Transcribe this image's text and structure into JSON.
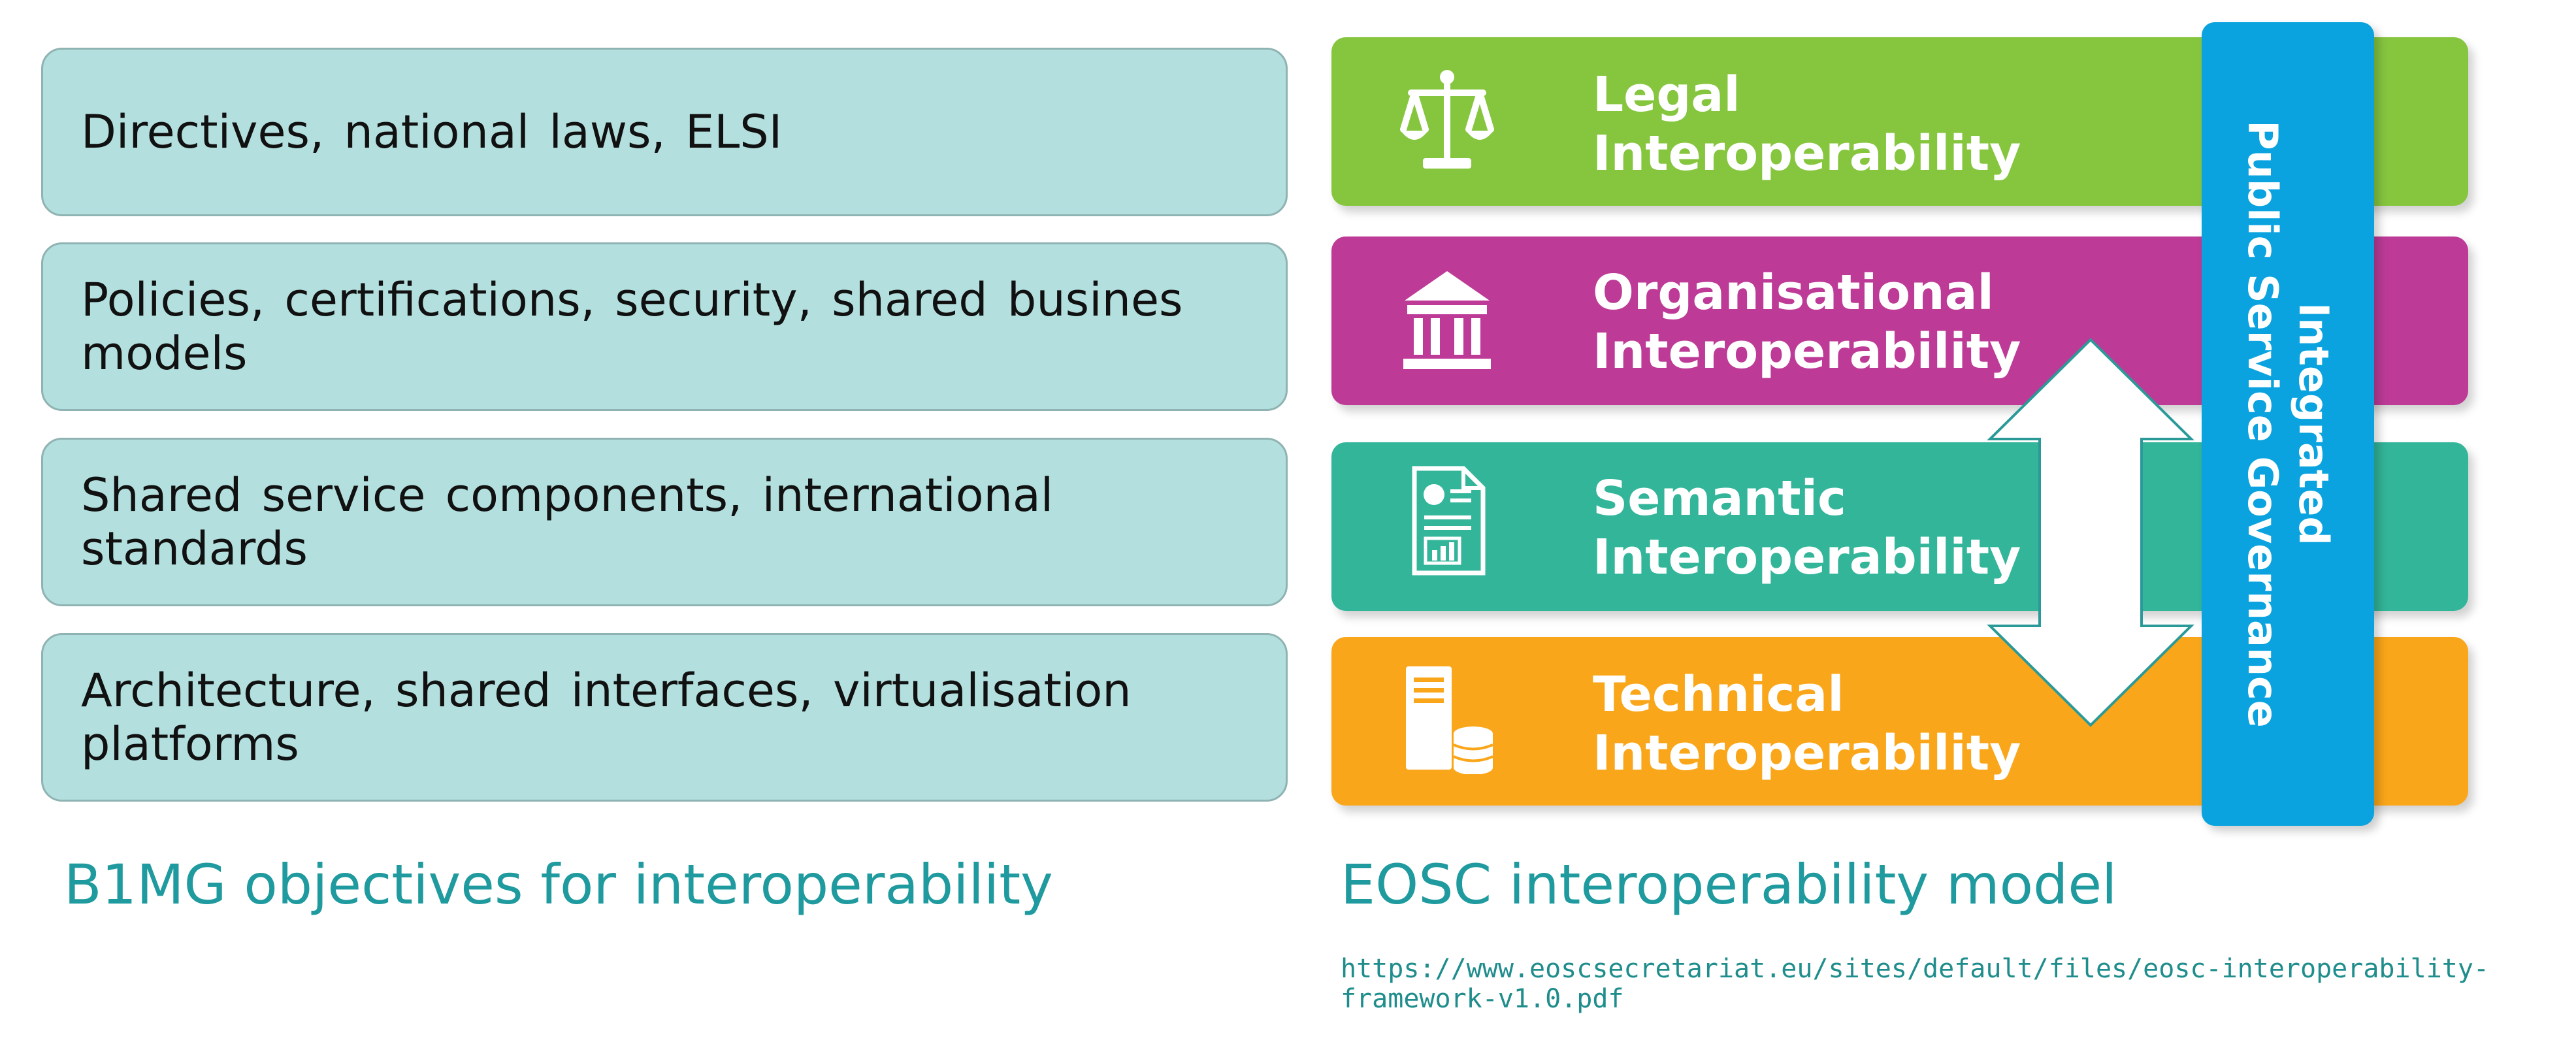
{
  "left_panel": {
    "items": [
      "Directives, national laws, ELSI",
      "Policies, certifications, security, shared busines models",
      "Shared service components, international standards",
      "Architecture, shared interfaces, virtualisation platforms"
    ],
    "caption": "B1MG objectives for interoperability"
  },
  "right_panel": {
    "layers": [
      {
        "line1": "Legal",
        "line2": "Interoperability",
        "color": "#86c63f",
        "icon": "scales-of-justice-icon"
      },
      {
        "line1": "Organisational",
        "line2": "Interoperability",
        "color": "#bd3b97",
        "icon": "institution-building-icon"
      },
      {
        "line1": "Semantic",
        "line2": "Interoperability",
        "color": "#33b59a",
        "icon": "document-report-icon"
      },
      {
        "line1": "Technical",
        "line2": "Interoperability",
        "color": "#faa61a",
        "icon": "server-database-icon"
      }
    ],
    "governance": {
      "line1": "Integrated",
      "line2": "Public Service Governance",
      "color": "#0aa3df"
    },
    "arrow_icon": "double-headed-vertical-arrow-icon",
    "caption": "EOSC interoperability model",
    "source_url": "https://www.eoscsecretariat.eu/sites/default/files/eosc-interoperability-framework-v1.0.pdf"
  }
}
